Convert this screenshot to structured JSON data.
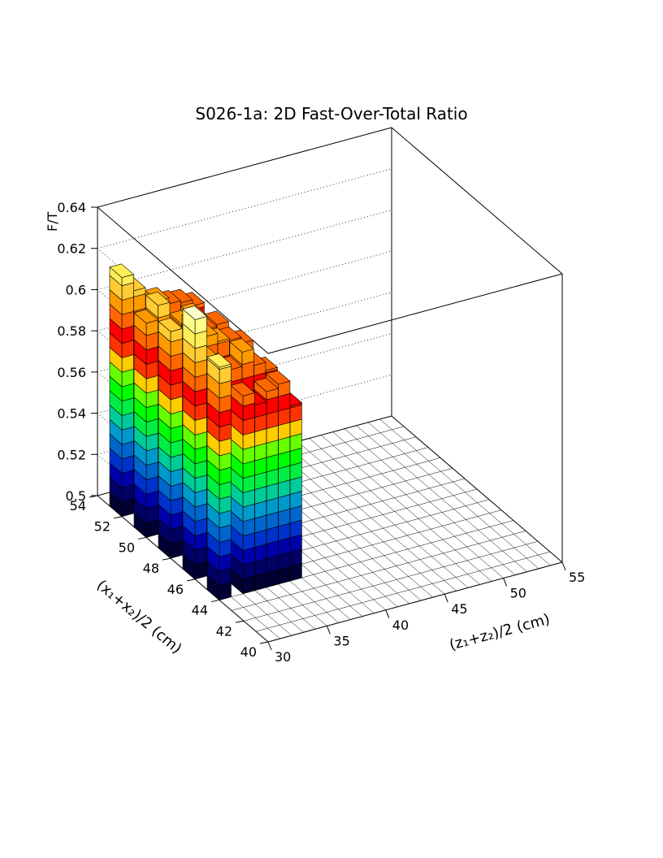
{
  "chart_data": {
    "type": "lego3d",
    "title": "S026-1a: 2D Fast-Over-Total Ratio",
    "zlabel": "F/T",
    "xlabel": "(z₁+z₂)/2 (cm)",
    "ylabel": "(x₁+x₂)/2 (cm)",
    "x_range": [
      30,
      55
    ],
    "y_range": [
      40,
      54
    ],
    "z_range": [
      0.5,
      0.64
    ],
    "x_ticks": [
      30,
      35,
      40,
      45,
      50,
      55
    ],
    "y_ticks": [
      40,
      42,
      44,
      46,
      48,
      50,
      52,
      54
    ],
    "z_ticks": [
      "0.5",
      "0.52",
      "0.54",
      "0.56",
      "0.58",
      "0.6",
      "0.62",
      "0.64"
    ],
    "x_bin_width": 1,
    "y_bin_width": 1,
    "grid": true,
    "palette": [
      "#000033",
      "#000066",
      "#0000aa",
      "#0033cc",
      "#0066cc",
      "#0099cc",
      "#00cc99",
      "#00ee44",
      "#00ff00",
      "#66ff00",
      "#ffcc00",
      "#ff3300",
      "#ff0000",
      "#ff6600",
      "#ff9900",
      "#ffcc33",
      "#ffee55",
      "#ffff88",
      "#ffffcc",
      "#ffffff"
    ],
    "bins": [
      {
        "x": 30.5,
        "y": 44.5,
        "z": 0.613
      },
      {
        "x": 30.5,
        "y": 46.5,
        "z": 0.626
      },
      {
        "x": 30.5,
        "y": 48.5,
        "z": 0.61
      },
      {
        "x": 30.5,
        "y": 50.5,
        "z": 0.604
      },
      {
        "x": 30.5,
        "y": 52.5,
        "z": 0.616
      },
      {
        "x": 31.5,
        "y": 46.5,
        "z": 0.605
      },
      {
        "x": 31.5,
        "y": 48.5,
        "z": 0.6
      },
      {
        "x": 31.5,
        "y": 50.5,
        "z": 0.611
      },
      {
        "x": 31.5,
        "y": 52.5,
        "z": 0.608
      },
      {
        "x": 32.5,
        "y": 44.5,
        "z": 0.596
      },
      {
        "x": 32.5,
        "y": 46.5,
        "z": 0.6
      },
      {
        "x": 32.5,
        "y": 48.5,
        "z": 0.61
      },
      {
        "x": 32.5,
        "y": 50.5,
        "z": 0.595
      },
      {
        "x": 32.5,
        "y": 52.5,
        "z": 0.598
      },
      {
        "x": 33.5,
        "y": 44.5,
        "z": 0.59
      },
      {
        "x": 33.5,
        "y": 46.5,
        "z": 0.597
      },
      {
        "x": 33.5,
        "y": 48.5,
        "z": 0.603
      },
      {
        "x": 33.5,
        "y": 50.5,
        "z": 0.599
      },
      {
        "x": 33.5,
        "y": 52.5,
        "z": 0.6
      },
      {
        "x": 34.5,
        "y": 44.5,
        "z": 0.595
      },
      {
        "x": 34.5,
        "y": 46.5,
        "z": 0.604
      },
      {
        "x": 34.5,
        "y": 48.5,
        "z": 0.599
      },
      {
        "x": 34.5,
        "y": 50.5,
        "z": 0.601
      },
      {
        "x": 34.5,
        "y": 52.5,
        "z": 0.597
      },
      {
        "x": 35.5,
        "y": 44.5,
        "z": 0.597
      },
      {
        "x": 35.5,
        "y": 46.5,
        "z": 0.596
      },
      {
        "x": 35.5,
        "y": 48.5,
        "z": 0.598
      },
      {
        "x": 35.5,
        "y": 50.5,
        "z": 0.593
      },
      {
        "x": 35.5,
        "y": 52.5,
        "z": 0.596
      },
      {
        "x": 36.5,
        "y": 44.5,
        "z": 0.585
      },
      {
        "x": 36.5,
        "y": 46.5,
        "z": 0.592
      },
      {
        "x": 36.5,
        "y": 48.5,
        "z": 0.595
      },
      {
        "x": 36.5,
        "y": 50.5,
        "z": 0.594
      },
      {
        "x": 36.5,
        "y": 52.5,
        "z": 0.593
      }
    ]
  }
}
